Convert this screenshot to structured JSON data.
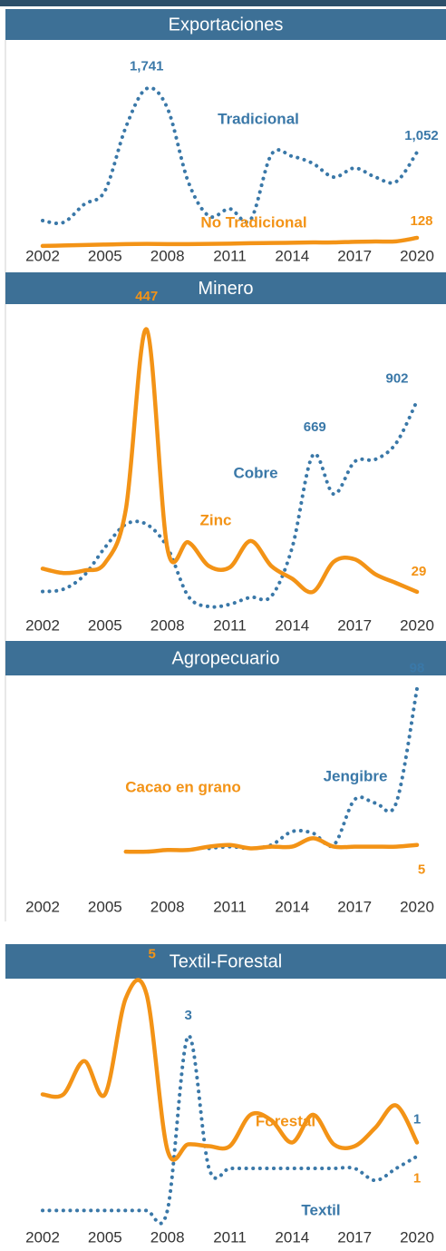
{
  "chart_data": [
    {
      "type": "line",
      "title": "Exportaciones",
      "x": [
        2002,
        2003,
        2004,
        2005,
        2006,
        2007,
        2008,
        2009,
        2010,
        2011,
        2012,
        2013,
        2014,
        2015,
        2016,
        2017,
        2018,
        2019,
        2020
      ],
      "xlim": [
        2002,
        2020
      ],
      "xticks": [
        2002,
        2005,
        2008,
        2011,
        2014,
        2017,
        2020
      ],
      "ylim": [
        0,
        2100
      ],
      "series": [
        {
          "name": "Tradicional",
          "color": "#3a78a8",
          "style": "dotted",
          "axis": "y",
          "values": [
            314,
            294,
            490,
            637,
            1323,
            1741,
            1530,
            735,
            363,
            441,
            323,
            1029,
            1009,
            931,
            784,
            882,
            784,
            735,
            1052
          ],
          "value_labels": [
            null,
            null,
            null,
            null,
            null,
            "1,741",
            null,
            null,
            null,
            null,
            null,
            null,
            null,
            null,
            null,
            null,
            null,
            null,
            "1,052"
          ]
        },
        {
          "name": "No Tradicional",
          "color": "#f39316",
          "style": "solid",
          "axis": "y",
          "values": [
            40,
            45,
            50,
            55,
            60,
            62,
            60,
            60,
            62,
            65,
            70,
            72,
            75,
            78,
            78,
            85,
            88,
            90,
            128
          ],
          "value_labels": [
            null,
            null,
            null,
            null,
            null,
            null,
            null,
            null,
            null,
            null,
            null,
            null,
            null,
            null,
            null,
            null,
            null,
            null,
            "128"
          ]
        }
      ]
    },
    {
      "type": "line",
      "title": "Minero",
      "x": [
        2002,
        2003,
        2004,
        2005,
        2006,
        2007,
        2008,
        2009,
        2010,
        2011,
        2012,
        2013,
        2014,
        2015,
        2016,
        2017,
        2018,
        2019,
        2020
      ],
      "xlim": [
        2002,
        2020
      ],
      "xticks": [
        2002,
        2005,
        2008,
        2011,
        2014,
        2017,
        2020
      ],
      "ylim": [
        0,
        1300
      ],
      "y2lim": [
        0,
        480
      ],
      "series": [
        {
          "name": "Cobre",
          "color": "#3a78a8",
          "style": "dotted",
          "axis": "y",
          "values": [
            80,
            90,
            150,
            270,
            370,
            370,
            270,
            60,
            15,
            25,
            55,
            60,
            270,
            669,
            500,
            640,
            650,
            720,
            902
          ],
          "value_labels": [
            null,
            null,
            null,
            null,
            null,
            null,
            null,
            null,
            null,
            null,
            null,
            null,
            null,
            "669",
            null,
            null,
            null,
            null,
            "902"
          ]
        },
        {
          "name": "Zinc",
          "color": "#f39316",
          "style": "solid",
          "axis": "y2",
          "values": [
            66,
            59,
            63,
            75,
            160,
            447,
            98,
            108,
            70,
            68,
            110,
            70,
            50,
            29,
            77,
            81,
            57,
            43,
            29
          ],
          "value_labels": [
            null,
            null,
            null,
            null,
            null,
            "447",
            null,
            null,
            null,
            null,
            null,
            null,
            null,
            null,
            null,
            null,
            null,
            null,
            "29"
          ]
        }
      ]
    },
    {
      "type": "line",
      "title": "Agropecuario",
      "x": [
        2002,
        2003,
        2004,
        2005,
        2006,
        2007,
        2008,
        2009,
        2010,
        2011,
        2012,
        2013,
        2014,
        2015,
        2016,
        2017,
        2018,
        2019,
        2020
      ],
      "xlim": [
        2002,
        2020
      ],
      "xticks": [
        2002,
        2005,
        2008,
        2011,
        2014,
        2017,
        2020
      ],
      "ylim": [
        0,
        100
      ],
      "series": [
        {
          "name": "Jengibre",
          "color": "#3a78a8",
          "style": "dotted",
          "axis": "y",
          "values": [
            null,
            null,
            null,
            null,
            null,
            null,
            null,
            null,
            3,
            4,
            3,
            5,
            13,
            12,
            5,
            32,
            30,
            30,
            98
          ],
          "value_labels": [
            null,
            null,
            null,
            null,
            null,
            null,
            null,
            null,
            null,
            null,
            null,
            null,
            null,
            null,
            null,
            null,
            null,
            null,
            "98"
          ]
        },
        {
          "name": "Cacao en grano",
          "color": "#f39316",
          "style": "solid",
          "axis": "y",
          "values": [
            null,
            null,
            null,
            null,
            1,
            1,
            2,
            2,
            4,
            5,
            3,
            4,
            4,
            9,
            4,
            4,
            4,
            4,
            5
          ],
          "value_labels": [
            null,
            null,
            null,
            null,
            null,
            null,
            null,
            null,
            null,
            null,
            null,
            null,
            null,
            null,
            null,
            null,
            null,
            null,
            "5"
          ]
        }
      ]
    },
    {
      "type": "line",
      "title": "Textil-Forestal",
      "x": [
        2002,
        2003,
        2004,
        2005,
        2006,
        2007,
        2008,
        2009,
        2010,
        2011,
        2012,
        2013,
        2014,
        2015,
        2016,
        2017,
        2018,
        2019,
        2020
      ],
      "xlim": [
        2002,
        2020
      ],
      "xticks": [
        2002,
        2005,
        2008,
        2011,
        2014,
        2017,
        2020
      ],
      "ylim": [
        -1,
        5.5
      ],
      "y2lim": [
        0,
        4
      ],
      "series": [
        {
          "name": "Textil",
          "color": "#3a78a8",
          "style": "dotted",
          "axis": "y2",
          "values": [
            0.1,
            0.1,
            0.1,
            0.1,
            0.1,
            0.1,
            0.1,
            3,
            0.8,
            0.8,
            0.8,
            0.8,
            0.8,
            0.8,
            0.8,
            0.8,
            0.6,
            0.8,
            1
          ],
          "value_labels": [
            null,
            null,
            null,
            null,
            null,
            null,
            null,
            "3",
            null,
            null,
            null,
            null,
            null,
            null,
            null,
            null,
            null,
            null,
            "1"
          ]
        },
        {
          "name": "Forestal",
          "color": "#f39316",
          "style": "solid",
          "axis": "y",
          "values": [
            2.3,
            2.3,
            3.2,
            2.3,
            4.9,
            5,
            0.8,
            0.95,
            0.9,
            0.9,
            1.75,
            1.6,
            1,
            1.75,
            0.95,
            0.9,
            1.4,
            2,
            1
          ],
          "value_labels": [
            null,
            null,
            null,
            null,
            null,
            "5",
            null,
            null,
            null,
            null,
            null,
            null,
            null,
            null,
            null,
            null,
            null,
            null,
            "1"
          ]
        }
      ]
    }
  ]
}
